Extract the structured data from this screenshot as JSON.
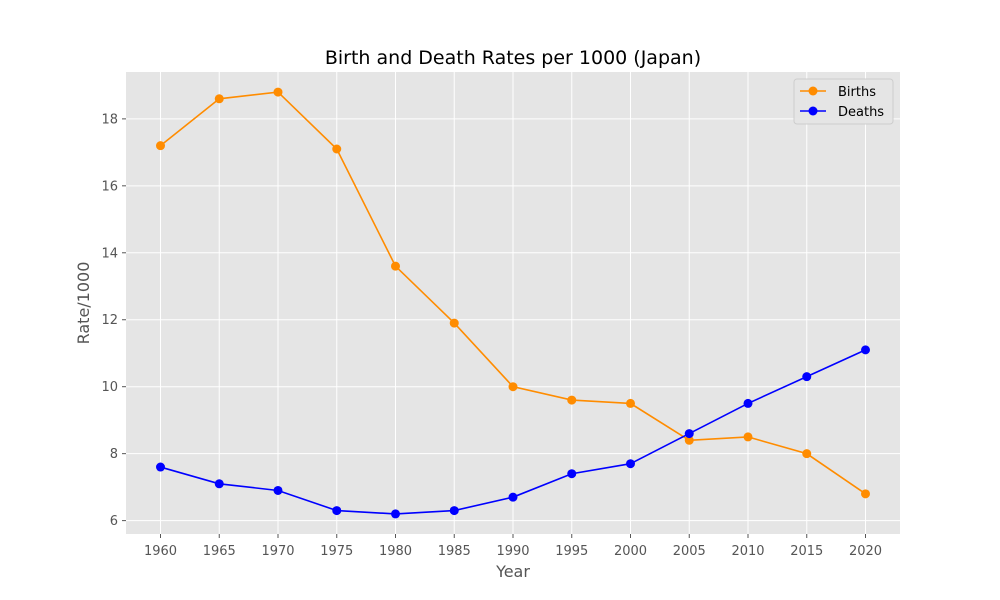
{
  "chart_data": {
    "type": "line",
    "title": "Birth and Death Rates per 1000 (Japan)",
    "xlabel": "Year",
    "ylabel": "Rate/1000",
    "categories": [
      "1960",
      "1965",
      "1970",
      "1975",
      "1980",
      "1985",
      "1990",
      "1995",
      "2000",
      "2005",
      "2010",
      "2015",
      "2020"
    ],
    "series": [
      {
        "name": "Births",
        "color": "#ff8c00",
        "marker": "circle",
        "values": [
          17.2,
          18.6,
          18.8,
          17.1,
          13.6,
          11.9,
          10.0,
          9.6,
          9.5,
          8.4,
          8.5,
          8.0,
          6.8
        ]
      },
      {
        "name": "Deaths",
        "color": "#0000ff",
        "marker": "circle",
        "values": [
          7.6,
          7.1,
          6.9,
          6.3,
          6.2,
          6.3,
          6.7,
          7.4,
          7.7,
          8.6,
          9.5,
          10.3,
          11.1
        ]
      }
    ],
    "ylim": [
      5.6,
      19.4
    ],
    "yticks": [
      6,
      8,
      10,
      12,
      14,
      16,
      18
    ],
    "grid": true,
    "style": "ggplot",
    "background": "#e5e5e5",
    "legend": {
      "placement": "top-right"
    }
  }
}
